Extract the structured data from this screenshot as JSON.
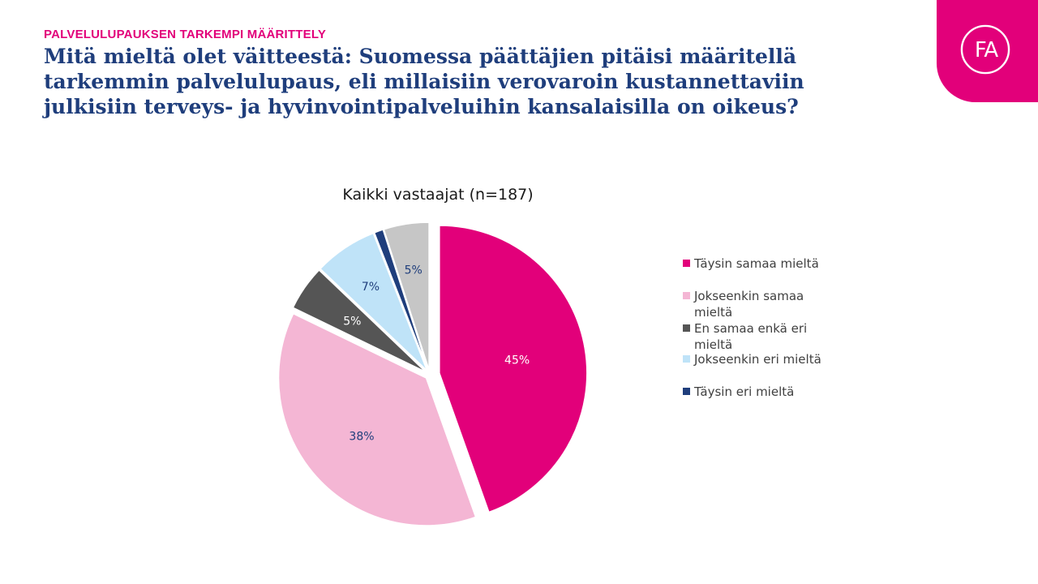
{
  "header": {
    "kicker": "PALVELULUPAUKSEN TARKEMPI MÄÄRITTELY",
    "title": "Mitä mieltä olet väitteestä: Suomessa päättäjien pitäisi määritellä tarkemmin palvelulupaus, eli millaisiin verovaroin kustannettaviin julkisiin terveys- ja hyvinvointipalveluihin kansalaisilla on oikeus?"
  },
  "logo": {
    "text": "FA",
    "color": "#e2007a"
  },
  "chart_data": {
    "type": "pie",
    "title": "Kaikki vastaajat (n=187)",
    "legend_position": "right",
    "slices": [
      {
        "label": "Täysin samaa mieltä",
        "value": 45,
        "display": "45%",
        "color": "#e2007a"
      },
      {
        "label": "Jokseenkin samaa mieltä",
        "value": 38,
        "display": "38%",
        "color": "#f4b6d4"
      },
      {
        "label": "En samaa enkä eri mieltä",
        "value": 5,
        "display": "5%",
        "color": "#555555"
      },
      {
        "label": "Jokseenkin eri mieltä",
        "value": 7,
        "display": "7%",
        "color": "#bfe3f8"
      },
      {
        "label": "Täysin eri mieltä",
        "value": 1,
        "display": "",
        "color": "#1f3e7c"
      },
      {
        "label": "",
        "value": 5,
        "display": "5%",
        "color": "#c6c6c6"
      }
    ]
  }
}
